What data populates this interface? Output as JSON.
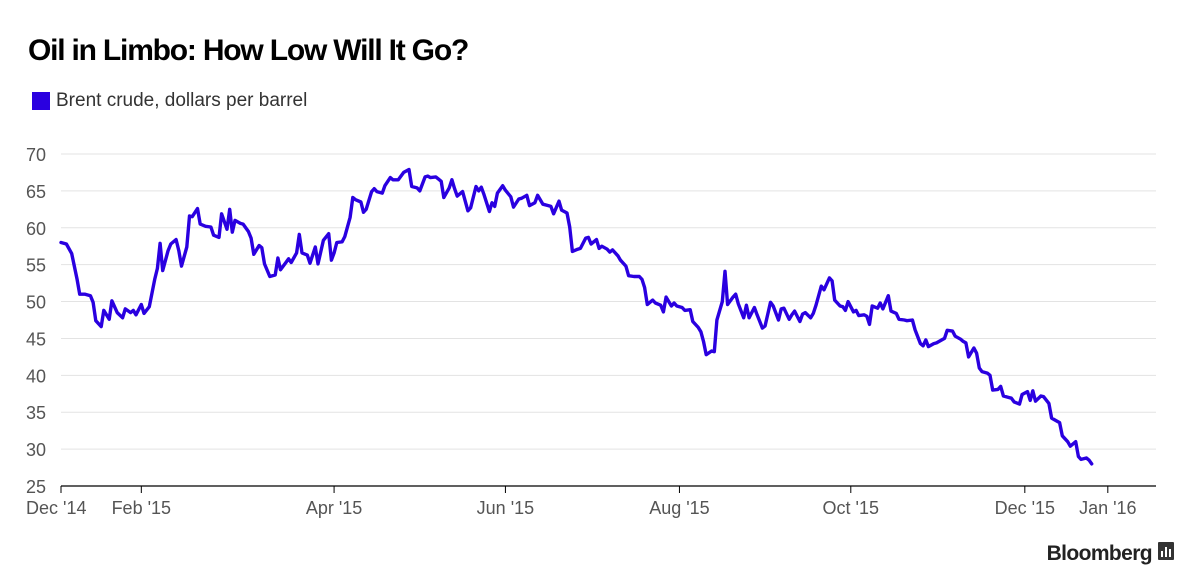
{
  "chart_data": {
    "type": "line",
    "title": "Oil in Limbo: How Low Will It Go?",
    "legend": "Brent crude, dollars per barrel",
    "series_color": "#2a00e0",
    "ylim": [
      25,
      70
    ],
    "yticks": [
      25,
      30,
      35,
      40,
      45,
      50,
      55,
      60,
      65,
      70
    ],
    "xlim": [
      0,
      409
    ],
    "xticks": [
      {
        "label": "Dec '14",
        "x": 0
      },
      {
        "label": "Feb '15",
        "x": 30
      },
      {
        "label": "Apr '15",
        "x": 102
      },
      {
        "label": "Jun '15",
        "x": 166
      },
      {
        "label": "Aug '15",
        "x": 231
      },
      {
        "label": "Oct '15",
        "x": 295
      },
      {
        "label": "Dec '15",
        "x": 360
      },
      {
        "label": "Jan '16",
        "x": 391
      }
    ],
    "series": [
      {
        "name": "Brent crude",
        "points": [
          [
            0,
            58.0
          ],
          [
            2,
            57.8
          ],
          [
            4,
            56.5
          ],
          [
            6,
            53.0
          ],
          [
            7,
            51.0
          ],
          [
            9,
            51.0
          ],
          [
            11,
            50.8
          ],
          [
            12,
            49.9
          ],
          [
            13,
            47.4
          ],
          [
            15,
            46.6
          ],
          [
            16,
            48.8
          ],
          [
            18,
            47.6
          ],
          [
            19,
            50.1
          ],
          [
            21,
            48.5
          ],
          [
            23,
            47.8
          ],
          [
            24,
            49.0
          ],
          [
            26,
            48.5
          ],
          [
            27,
            48.8
          ],
          [
            28,
            48.2
          ],
          [
            30,
            49.6
          ],
          [
            31,
            48.4
          ],
          [
            33,
            49.3
          ],
          [
            35,
            53.0
          ],
          [
            36,
            54.5
          ],
          [
            37,
            57.9
          ],
          [
            38,
            54.2
          ],
          [
            40,
            56.9
          ],
          [
            41,
            57.8
          ],
          [
            43,
            58.4
          ],
          [
            44,
            56.9
          ],
          [
            45,
            54.8
          ],
          [
            47,
            57.4
          ],
          [
            48,
            61.6
          ],
          [
            49,
            61.5
          ],
          [
            51,
            62.6
          ],
          [
            52,
            60.5
          ],
          [
            54,
            60.2
          ],
          [
            56,
            60.1
          ],
          [
            57,
            59.0
          ],
          [
            59,
            58.7
          ],
          [
            60,
            61.9
          ],
          [
            62,
            59.8
          ],
          [
            63,
            62.5
          ],
          [
            64,
            59.4
          ],
          [
            65,
            61.0
          ],
          [
            67,
            60.6
          ],
          [
            68,
            60.5
          ],
          [
            70,
            59.5
          ],
          [
            71,
            58.6
          ],
          [
            72,
            56.4
          ],
          [
            74,
            57.6
          ],
          [
            75,
            57.3
          ],
          [
            76,
            55.1
          ],
          [
            78,
            53.4
          ],
          [
            80,
            53.6
          ],
          [
            81,
            55.9
          ],
          [
            82,
            54.3
          ],
          [
            84,
            55.3
          ],
          [
            85,
            55.8
          ],
          [
            86,
            55.3
          ],
          [
            88,
            56.6
          ],
          [
            89,
            59.1
          ],
          [
            90,
            56.6
          ],
          [
            92,
            56.3
          ],
          [
            93,
            55.2
          ],
          [
            95,
            57.4
          ],
          [
            96,
            55.1
          ],
          [
            98,
            58.3
          ],
          [
            100,
            59.2
          ],
          [
            101,
            55.6
          ],
          [
            102,
            56.6
          ],
          [
            103,
            58.0
          ],
          [
            105,
            58.1
          ],
          [
            106,
            58.8
          ],
          [
            108,
            61.4
          ],
          [
            109,
            64.1
          ],
          [
            110,
            63.8
          ],
          [
            112,
            63.5
          ],
          [
            113,
            62.1
          ],
          [
            114,
            62.5
          ],
          [
            116,
            64.9
          ],
          [
            117,
            65.3
          ],
          [
            118,
            64.9
          ],
          [
            120,
            64.7
          ],
          [
            121,
            65.7
          ],
          [
            123,
            66.8
          ],
          [
            124,
            66.5
          ],
          [
            126,
            66.5
          ],
          [
            128,
            67.5
          ],
          [
            130,
            67.9
          ],
          [
            131,
            65.6
          ],
          [
            133,
            65.4
          ],
          [
            134,
            65.0
          ],
          [
            136,
            66.9
          ],
          [
            137,
            67.0
          ],
          [
            138,
            66.8
          ],
          [
            140,
            66.9
          ],
          [
            141,
            66.6
          ],
          [
            142,
            66.3
          ],
          [
            143,
            64.1
          ],
          [
            145,
            65.4
          ],
          [
            146,
            66.5
          ],
          [
            147,
            65.3
          ],
          [
            148,
            64.3
          ],
          [
            150,
            64.9
          ],
          [
            152,
            62.3
          ],
          [
            153,
            62.7
          ],
          [
            155,
            65.6
          ],
          [
            156,
            65.0
          ],
          [
            157,
            65.5
          ],
          [
            158,
            64.5
          ],
          [
            160,
            62.2
          ],
          [
            161,
            63.4
          ],
          [
            162,
            62.9
          ],
          [
            163,
            64.7
          ],
          [
            165,
            65.7
          ],
          [
            166,
            65.1
          ],
          [
            168,
            64.2
          ],
          [
            169,
            62.8
          ],
          [
            171,
            63.9
          ],
          [
            172,
            64.0
          ],
          [
            174,
            64.4
          ],
          [
            175,
            63.0
          ],
          [
            177,
            63.4
          ],
          [
            178,
            64.4
          ],
          [
            180,
            63.2
          ],
          [
            182,
            63.0
          ],
          [
            183,
            62.9
          ],
          [
            184,
            61.9
          ],
          [
            186,
            63.6
          ],
          [
            187,
            62.4
          ],
          [
            189,
            62.0
          ],
          [
            190,
            60.1
          ],
          [
            191,
            56.8
          ],
          [
            193,
            57.1
          ],
          [
            194,
            57.2
          ],
          [
            196,
            58.6
          ],
          [
            197,
            58.7
          ],
          [
            198,
            57.8
          ],
          [
            200,
            58.4
          ],
          [
            201,
            57.2
          ],
          [
            202,
            57.5
          ],
          [
            204,
            57.1
          ],
          [
            205,
            56.7
          ],
          [
            206,
            57.0
          ],
          [
            208,
            56.2
          ],
          [
            209,
            55.6
          ],
          [
            211,
            54.8
          ],
          [
            212,
            53.5
          ],
          [
            214,
            53.4
          ],
          [
            216,
            53.4
          ],
          [
            217,
            53.0
          ],
          [
            218,
            51.9
          ],
          [
            219,
            49.6
          ],
          [
            221,
            50.2
          ],
          [
            222,
            49.8
          ],
          [
            224,
            49.5
          ],
          [
            225,
            48.6
          ],
          [
            226,
            50.6
          ],
          [
            228,
            49.4
          ],
          [
            229,
            49.8
          ],
          [
            230,
            49.4
          ],
          [
            232,
            49.2
          ],
          [
            233,
            48.8
          ],
          [
            235,
            48.9
          ],
          [
            236,
            47.3
          ],
          [
            238,
            46.5
          ],
          [
            239,
            45.9
          ],
          [
            240,
            44.6
          ],
          [
            241,
            42.8
          ],
          [
            243,
            43.3
          ],
          [
            244,
            43.2
          ],
          [
            245,
            47.5
          ],
          [
            247,
            50.0
          ],
          [
            248,
            54.1
          ],
          [
            249,
            49.6
          ],
          [
            251,
            50.6
          ],
          [
            252,
            51.0
          ],
          [
            253,
            49.7
          ],
          [
            255,
            47.8
          ],
          [
            256,
            49.5
          ],
          [
            257,
            47.8
          ],
          [
            259,
            49.2
          ],
          [
            260,
            48.2
          ],
          [
            262,
            46.4
          ],
          [
            263,
            46.7
          ],
          [
            265,
            49.9
          ],
          [
            266,
            49.4
          ],
          [
            268,
            47.5
          ],
          [
            269,
            49.0
          ],
          [
            270,
            49.1
          ],
          [
            272,
            47.6
          ],
          [
            273,
            48.2
          ],
          [
            274,
            48.7
          ],
          [
            276,
            47.3
          ],
          [
            277,
            48.3
          ],
          [
            278,
            48.5
          ],
          [
            280,
            47.8
          ],
          [
            281,
            48.4
          ],
          [
            282,
            49.5
          ],
          [
            284,
            52.1
          ],
          [
            285,
            51.6
          ],
          [
            287,
            53.2
          ],
          [
            288,
            52.8
          ],
          [
            289,
            50.2
          ],
          [
            291,
            49.4
          ],
          [
            292,
            49.3
          ],
          [
            293,
            48.8
          ],
          [
            294,
            50.0
          ],
          [
            296,
            48.6
          ],
          [
            297,
            48.8
          ],
          [
            298,
            48.1
          ],
          [
            300,
            48.2
          ],
          [
            301,
            48.0
          ],
          [
            302,
            46.9
          ],
          [
            303,
            49.4
          ],
          [
            305,
            49.1
          ],
          [
            306,
            49.8
          ],
          [
            307,
            49.0
          ],
          [
            309,
            50.8
          ],
          [
            310,
            48.7
          ],
          [
            312,
            48.4
          ],
          [
            313,
            47.6
          ],
          [
            315,
            47.5
          ],
          [
            316,
            47.4
          ],
          [
            318,
            47.5
          ],
          [
            319,
            46.2
          ],
          [
            321,
            44.3
          ],
          [
            322,
            44.0
          ],
          [
            323,
            44.8
          ],
          [
            324,
            43.9
          ],
          [
            326,
            44.3
          ],
          [
            327,
            44.4
          ],
          [
            329,
            44.8
          ],
          [
            330,
            45.0
          ],
          [
            331,
            46.1
          ],
          [
            333,
            46.0
          ],
          [
            334,
            45.3
          ],
          [
            336,
            44.9
          ],
          [
            337,
            44.6
          ],
          [
            338,
            44.4
          ],
          [
            339,
            42.5
          ],
          [
            341,
            43.7
          ],
          [
            342,
            43.0
          ],
          [
            343,
            41.0
          ],
          [
            344,
            40.5
          ],
          [
            346,
            40.3
          ],
          [
            347,
            40.0
          ],
          [
            348,
            38.0
          ],
          [
            350,
            38.1
          ],
          [
            351,
            38.5
          ],
          [
            352,
            37.2
          ],
          [
            354,
            37.0
          ],
          [
            355,
            36.9
          ],
          [
            356,
            36.4
          ],
          [
            358,
            36.1
          ],
          [
            359,
            37.4
          ],
          [
            361,
            37.8
          ],
          [
            362,
            36.6
          ],
          [
            363,
            37.9
          ],
          [
            364,
            36.5
          ],
          [
            366,
            37.2
          ],
          [
            367,
            37.1
          ],
          [
            369,
            36.2
          ],
          [
            370,
            34.2
          ],
          [
            372,
            33.8
          ],
          [
            373,
            33.6
          ],
          [
            374,
            31.8
          ],
          [
            376,
            31.0
          ],
          [
            377,
            30.4
          ],
          [
            379,
            31.0
          ],
          [
            380,
            29.0
          ],
          [
            381,
            28.6
          ],
          [
            383,
            28.8
          ],
          [
            384,
            28.5
          ],
          [
            385,
            28.0
          ]
        ]
      }
    ],
    "source": "Bloomberg"
  }
}
